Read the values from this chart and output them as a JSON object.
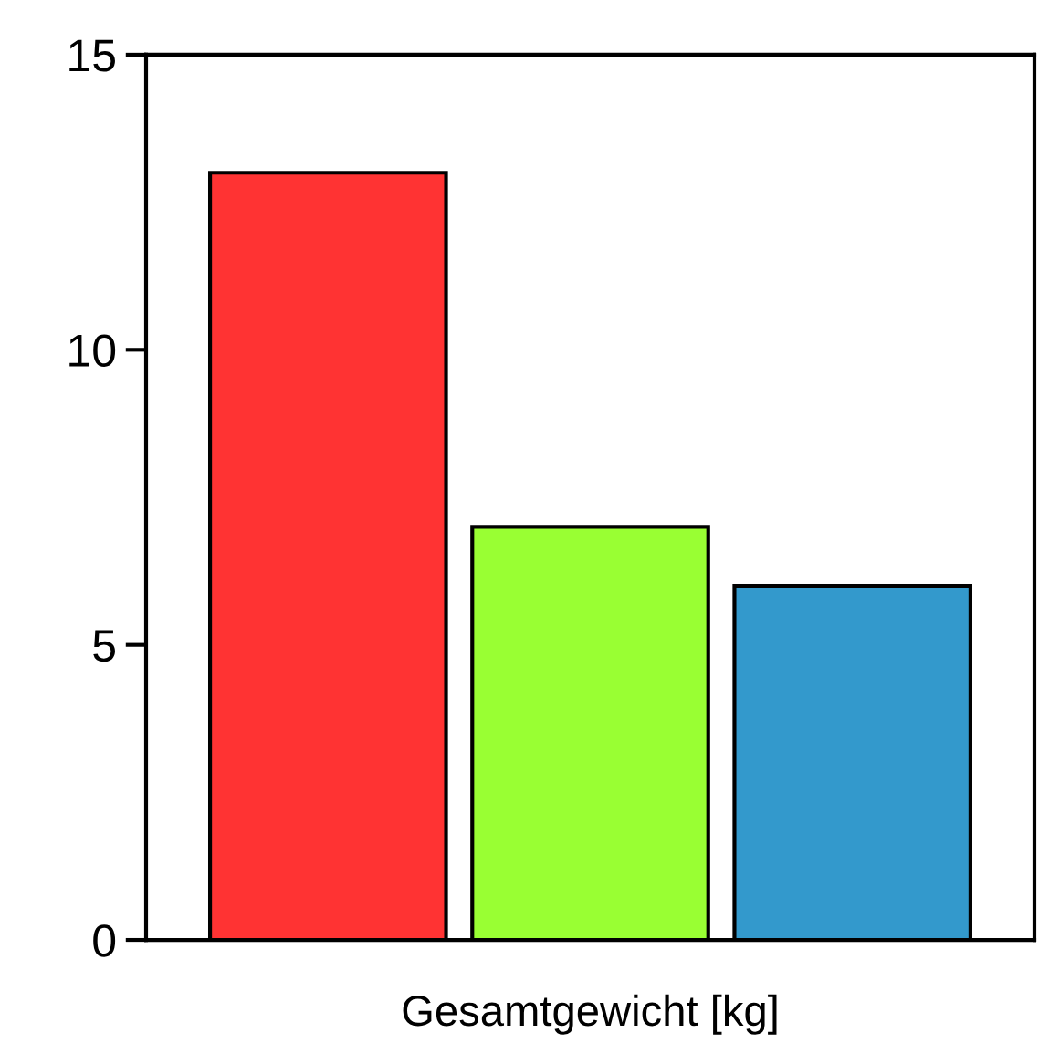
{
  "chart_data": {
    "type": "bar",
    "xlabel": "Gesamtgewicht [kg]",
    "categories": [
      null,
      null,
      null
    ],
    "values": [
      13,
      7,
      6
    ],
    "colors": [
      "#ff3333",
      "#99ff33",
      "#3399cc"
    ],
    "ylim": [
      0,
      15
    ],
    "yticks": [
      0,
      5,
      10,
      15
    ],
    "grid": false,
    "legend": false
  }
}
